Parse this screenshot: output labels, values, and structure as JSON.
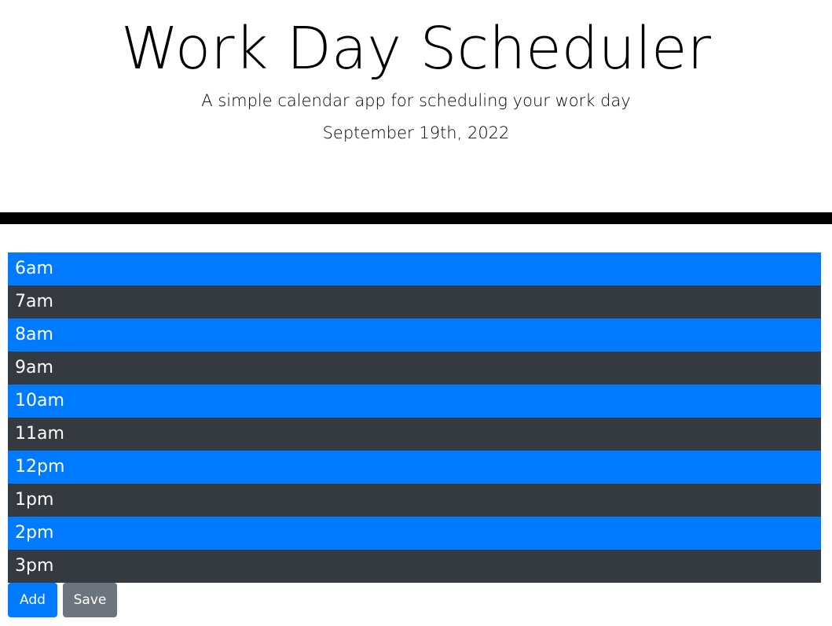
{
  "header": {
    "title": "Work Day Scheduler",
    "subtitle": "A simple calendar app for scheduling your work day",
    "current_date": "September 19th, 2022"
  },
  "hours": [
    {
      "label": "6am",
      "color": "#007bff"
    },
    {
      "label": "7am",
      "color": "#343a40"
    },
    {
      "label": "8am",
      "color": "#007bff"
    },
    {
      "label": "9am",
      "color": "#343a40"
    },
    {
      "label": "10am",
      "color": "#007bff"
    },
    {
      "label": "11am",
      "color": "#343a40"
    },
    {
      "label": "12pm",
      "color": "#007bff"
    },
    {
      "label": "1pm",
      "color": "#343a40"
    },
    {
      "label": "2pm",
      "color": "#007bff"
    },
    {
      "label": "3pm",
      "color": "#343a40"
    }
  ],
  "actions": {
    "add_label": "Add",
    "save_label": "Save"
  },
  "colors": {
    "primary": "#007bff",
    "dark": "#343a40",
    "secondary": "#6c757d",
    "divider": "#000000"
  }
}
